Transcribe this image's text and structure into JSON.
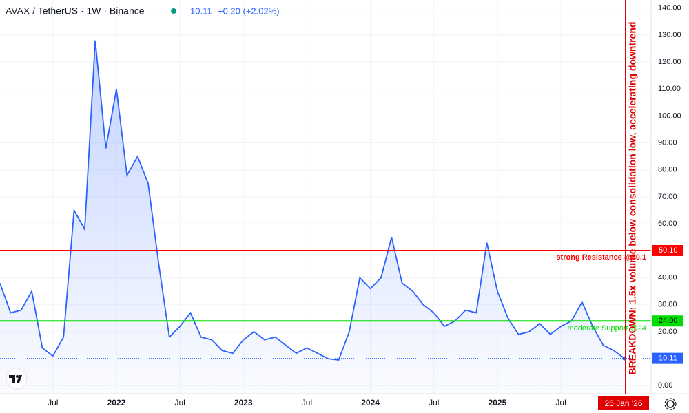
{
  "chart_data": {
    "type": "area",
    "title": "AVAX / TetherUS · 1W · Binance",
    "price_text": "10.11",
    "change_text": "+0.20 (+2.02%)",
    "color": "#2962ff",
    "x": [
      "2021-02",
      "2021-03",
      "2021-04",
      "2021-05",
      "2021-06",
      "2021-07",
      "2021-08",
      "2021-09",
      "2021-10",
      "2021-11",
      "2021-12",
      "2022-01",
      "2022-02",
      "2022-03",
      "2022-04",
      "2022-05",
      "2022-06",
      "2022-07",
      "2022-08",
      "2022-09",
      "2022-10",
      "2022-11",
      "2022-12",
      "2023-01",
      "2023-02",
      "2023-03",
      "2023-04",
      "2023-05",
      "2023-06",
      "2023-07",
      "2023-08",
      "2023-09",
      "2023-10",
      "2023-11",
      "2023-12",
      "2024-01",
      "2024-02",
      "2024-03",
      "2024-04",
      "2024-05",
      "2024-06",
      "2024-07",
      "2024-08",
      "2024-09",
      "2024-10",
      "2024-11",
      "2024-12",
      "2025-01",
      "2025-02",
      "2025-03",
      "2025-04",
      "2025-05",
      "2025-06",
      "2025-07",
      "2025-08",
      "2025-09",
      "2025-10",
      "2025-11",
      "2025-12",
      "2026-01"
    ],
    "values": [
      38,
      27,
      28,
      35,
      14,
      11,
      18,
      65,
      58,
      128,
      88,
      110,
      78,
      85,
      75,
      45,
      18,
      22,
      27,
      18,
      17,
      13,
      12,
      17,
      20,
      17,
      18,
      15,
      12,
      14,
      12,
      10,
      9.5,
      20,
      40,
      36,
      40,
      55,
      38,
      35,
      30,
      27,
      22,
      24,
      28,
      27,
      53,
      35,
      25,
      19,
      20,
      23,
      19,
      22,
      24,
      31,
      22,
      15,
      13,
      10.11
    ],
    "ylim": [
      -3,
      143
    ],
    "yticks": [
      {
        "value": 0,
        "label": "0.00"
      },
      {
        "value": 20,
        "label": "20.00"
      },
      {
        "value": 30,
        "label": "30.00"
      },
      {
        "value": 40,
        "label": "40.00"
      },
      {
        "value": 60,
        "label": "60.00"
      },
      {
        "value": 70,
        "label": "70.00"
      },
      {
        "value": 80,
        "label": "80.00"
      },
      {
        "value": 90,
        "label": "90.00"
      },
      {
        "value": 100,
        "label": "100.00"
      },
      {
        "value": 110,
        "label": "110.00"
      },
      {
        "value": 120,
        "label": "120.00"
      },
      {
        "value": 130,
        "label": "130.00"
      },
      {
        "value": 140,
        "label": "140.00"
      }
    ],
    "xticks": [
      {
        "value": "2021-07",
        "label": "Jul"
      },
      {
        "value": "2022-01",
        "label": "2022"
      },
      {
        "value": "2022-07",
        "label": "Jul"
      },
      {
        "value": "2023-01",
        "label": "2023"
      },
      {
        "value": "2023-07",
        "label": "Jul"
      },
      {
        "value": "2024-01",
        "label": "2024"
      },
      {
        "value": "2024-07",
        "label": "Jul"
      },
      {
        "value": "2025-01",
        "label": "2025"
      },
      {
        "value": "2025-07",
        "label": "Jul"
      }
    ],
    "grid": true,
    "levels": [
      {
        "name": "strong Resistance @50.1",
        "value": 50.1,
        "value_label": "50.10",
        "color": "#ff0000"
      },
      {
        "name": "moderate Support @24",
        "value": 24.0,
        "value_label": "24.00",
        "color": "#00dd00"
      }
    ],
    "last_price": 10.11,
    "annotation": "BREAKDOWN: 1.5x volume below consolidation low, accelerating downtrend",
    "annotation_color": "#e00000",
    "date_label": "26 Jan '26"
  }
}
